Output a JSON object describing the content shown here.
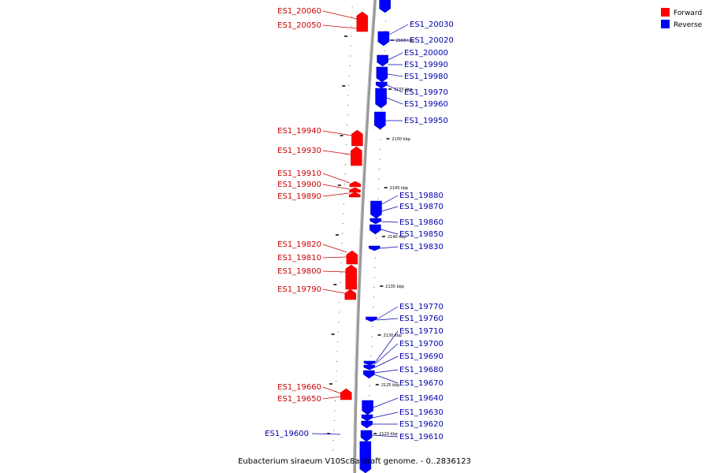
{
  "colors": {
    "forward": "#ff0000",
    "reverse": "#0000ff",
    "forward_text": "#cc0000",
    "reverse_text": "#0000aa",
    "backbone": "#999999"
  },
  "legend": [
    {
      "label": "Forward",
      "color": "#ff0000"
    },
    {
      "label": "Reverse",
      "color": "#0000ff"
    }
  ],
  "caption": "Eubacterium siraeum V10Sc8a draft genome. - 0..2836123",
  "ticks": [
    "2160 kbp",
    "2155 kbp",
    "2150 kbp",
    "2145 kbp",
    "2140 kbp",
    "2135 kbp",
    "2130 kbp",
    "2125 kbp",
    "2120 kbp"
  ],
  "forward_genes": [
    "ES1_20060",
    "ES1_20050",
    "ES1_19940",
    "ES1_19930",
    "ES1_19910",
    "ES1_19900",
    "ES1_19890",
    "ES1_19820",
    "ES1_19810",
    "ES1_19800",
    "ES1_19790",
    "ES1_19660",
    "ES1_19650"
  ],
  "reverse_genes": [
    "ES1_20030",
    "ES1_20020",
    "ES1_20000",
    "ES1_19990",
    "ES1_19980",
    "ES1_19970",
    "ES1_19960",
    "ES1_19950",
    "ES1_19880",
    "ES1_19870",
    "ES1_19860",
    "ES1_19850",
    "ES1_19830",
    "ES1_19770",
    "ES1_19760",
    "ES1_19710",
    "ES1_19700",
    "ES1_19690",
    "ES1_19680",
    "ES1_19670",
    "ES1_19640",
    "ES1_19630",
    "ES1_19620",
    "ES1_19610",
    "ES1_19600"
  ]
}
